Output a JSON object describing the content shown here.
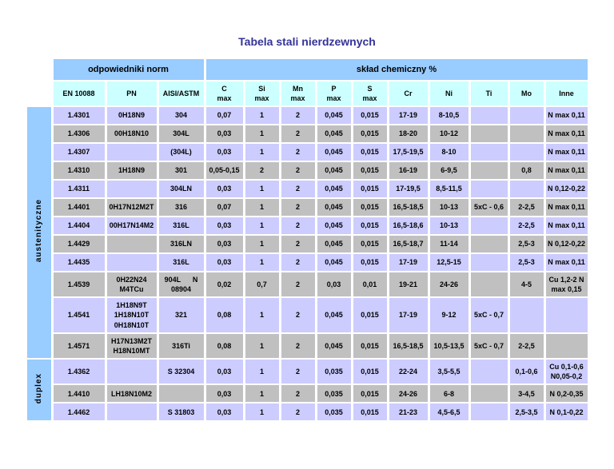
{
  "title": "Tabela stali nierdzewnych",
  "colors": {
    "title_color": "#333399",
    "group_header_bg": "#99CCFF",
    "subheader_bg": "#CCFFFF",
    "row_alt_lavender_bg": "#CCCCFF",
    "row_alt_gray_bg": "#C0C0C0",
    "text_color": "#000000"
  },
  "table": {
    "group_headers": [
      {
        "label": "odpowiedniki norm"
      },
      {
        "label": "skład chemiczny %"
      }
    ],
    "columns": [
      "EN 10088",
      "PN",
      "AISI/ASTM",
      "C\nmax",
      "Si\nmax",
      "Mn\nmax",
      "P\nmax",
      "S\nmax",
      "Cr",
      "Ni",
      "Ti",
      "Mo",
      "Inne"
    ],
    "groups": [
      {
        "label": "austenityczne",
        "rows": [
          [
            "1.4301",
            "0H18N9",
            "304",
            "0,07",
            "1",
            "2",
            "0,045",
            "0,015",
            "17-19",
            "8-10,5",
            "",
            "",
            "N max 0,11"
          ],
          [
            "1.4306",
            "00H18N10",
            "304L",
            "0,03",
            "1",
            "2",
            "0,045",
            "0,015",
            "18-20",
            "10-12",
            "",
            "",
            "N max 0,11"
          ],
          [
            "1.4307",
            "",
            "(304L)",
            "0,03",
            "1",
            "2",
            "0,045",
            "0,015",
            "17,5-19,5",
            "8-10",
            "",
            "",
            "N max 0,11"
          ],
          [
            "1.4310",
            "1H18N9",
            "301",
            "0,05-0,15",
            "2",
            "2",
            "0,045",
            "0,015",
            "16-19",
            "6-9,5",
            "",
            "0,8",
            "N max 0,11"
          ],
          [
            "1.4311",
            "",
            "304LN",
            "0,03",
            "1",
            "2",
            "0,045",
            "0,015",
            "17-19,5",
            "8,5-11,5",
            "",
            "",
            "N 0,12-0,22"
          ],
          [
            "1.4401",
            "0H17N12M2T",
            "316",
            "0,07",
            "1",
            "2",
            "0,045",
            "0,015",
            "16,5-18,5",
            "10-13",
            "5xC - 0,6",
            "2-2,5",
            "N max 0,11"
          ],
          [
            "1.4404",
            "00H17N14M2",
            "316L",
            "0,03",
            "1",
            "2",
            "0,045",
            "0,015",
            "16,5-18,6",
            "10-13",
            "",
            "2-2,5",
            "N max 0,11"
          ],
          [
            "1.4429",
            "",
            "316LN",
            "0,03",
            "1",
            "2",
            "0,045",
            "0,015",
            "16,5-18,7",
            "11-14",
            "",
            "2,5-3",
            "N 0,12-0,22"
          ],
          [
            "1.4435",
            "",
            "316L",
            "0,03",
            "1",
            "2",
            "0,045",
            "0,015",
            "17-19",
            "12,5-15",
            "",
            "2,5-3",
            "N max 0,11"
          ],
          [
            "1.4539",
            "0H22N24\nM4TCu",
            "904L      N\n08904",
            "0,02",
            "0,7",
            "2",
            "0,03",
            "0,01",
            "19-21",
            "24-26",
            "",
            "4-5",
            "Cu 1,2-2 N\nmax 0,15"
          ],
          [
            "1.4541",
            "1H18N9T\n1H18N10T\n0H18N10T",
            "321",
            "0,08",
            "1",
            "2",
            "0,045",
            "0,015",
            "17-19",
            "9-12",
            "5xC - 0,7",
            "",
            ""
          ],
          [
            "1.4571",
            "H17N13M2T\nH18N10MT",
            "316Ti",
            "0,08",
            "1",
            "2",
            "0,045",
            "0,015",
            "16,5-18,5",
            "10,5-13,5",
            "5xC - 0,7",
            "2-2,5",
            ""
          ]
        ]
      },
      {
        "label": "duplex",
        "rows": [
          [
            "1.4362",
            "",
            "S 32304",
            "0,03",
            "1",
            "2",
            "0,035",
            "0,015",
            "22-24",
            "3,5-5,5",
            "",
            "0,1-0,6",
            "Cu 0,1-0,6\nN0,05-0,2"
          ],
          [
            "1.4410",
            "LH18N10M2",
            "",
            "0,03",
            "1",
            "2",
            "0,035",
            "0,015",
            "24-26",
            "6-8",
            "",
            "3-4,5",
            "N 0,2-0,35"
          ],
          [
            "1.4462",
            "",
            "S 31803",
            "0,03",
            "1",
            "2",
            "0,035",
            "0,015",
            "21-23",
            "4,5-6,5",
            "",
            "2,5-3,5",
            "N 0,1-0,22"
          ]
        ]
      }
    ]
  }
}
